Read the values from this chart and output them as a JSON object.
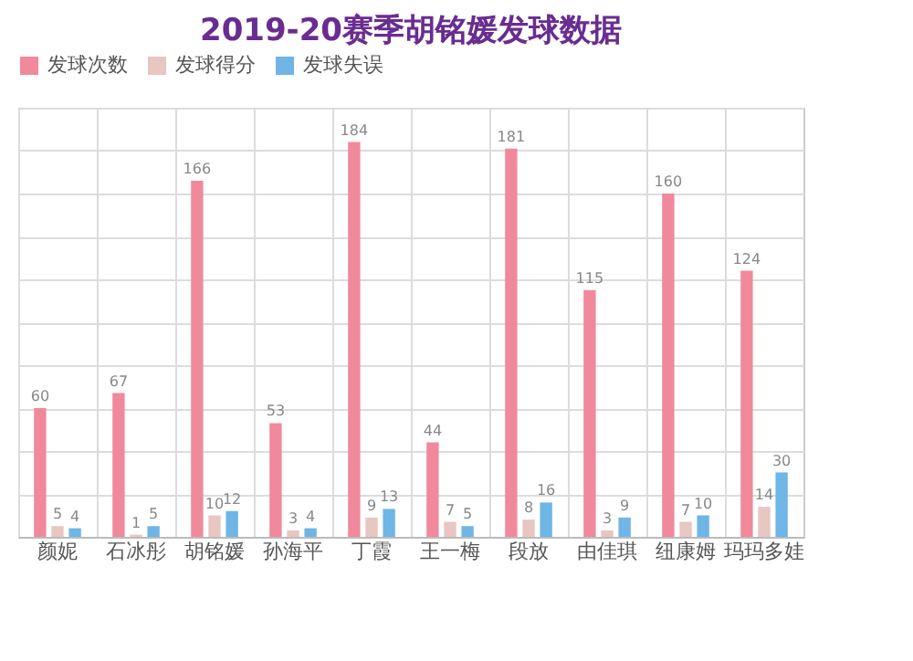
{
  "chart_data": {
    "type": "bar",
    "title": "2019-20赛季胡铭媛发球数据",
    "categories": [
      "颜妮",
      "石冰彤",
      "胡铭媛",
      "孙海平",
      "丁霞",
      "王一梅",
      "段放",
      "由佳琪",
      "纽康姆",
      "玛玛多娃"
    ],
    "series": [
      {
        "name": "发球次数",
        "color": "#f0899b",
        "values": [
          60,
          67,
          166,
          53,
          184,
          44,
          181,
          115,
          160,
          124
        ]
      },
      {
        "name": "发球得分",
        "color": "#e8c6c2",
        "values": [
          5,
          1,
          10,
          3,
          9,
          7,
          8,
          3,
          7,
          14
        ]
      },
      {
        "name": "发球失误",
        "color": "#6fb5e6",
        "values": [
          4,
          5,
          12,
          4,
          13,
          5,
          16,
          9,
          10,
          30
        ]
      }
    ],
    "grid": true,
    "tick_labels": "x",
    "legend": "top",
    "data_labels": true
  }
}
